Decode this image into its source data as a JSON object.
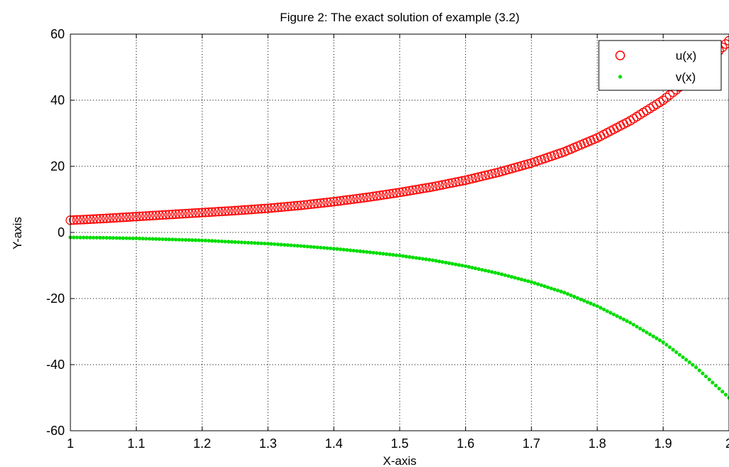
{
  "chart_data": {
    "type": "scatter",
    "title": "Figure 2: The exact solution of example (3.2)",
    "xlabel": "X-axis",
    "ylabel": "Y-axis",
    "xlim": [
      1,
      2
    ],
    "ylim": [
      -60,
      60
    ],
    "xticks": [
      1,
      1.1,
      1.2,
      1.3,
      1.4,
      1.5,
      1.6,
      1.7,
      1.8,
      1.9,
      2
    ],
    "yticks": [
      -60,
      -40,
      -20,
      0,
      20,
      40,
      60
    ],
    "xtick_labels": [
      "1",
      "1.1",
      "1.2",
      "1.3",
      "1.4",
      "1.5",
      "1.6",
      "1.7",
      "1.8",
      "1.9",
      "2"
    ],
    "ytick_labels": [
      "-60",
      "-40",
      "-20",
      "0",
      "20",
      "40",
      "60"
    ],
    "grid": true,
    "legend_position": "top-right",
    "colors": {
      "u": "#ff0000",
      "v": "#00dd00"
    },
    "series": [
      {
        "name": "u(x)",
        "marker": "circle",
        "x": [
          1.0,
          1.05,
          1.1,
          1.15,
          1.2,
          1.25,
          1.3,
          1.35,
          1.4,
          1.45,
          1.5,
          1.55,
          1.6,
          1.65,
          1.7,
          1.75,
          1.8,
          1.85,
          1.9,
          1.95,
          2.0
        ],
        "y": [
          3.7,
          4.2,
          4.8,
          5.4,
          6.0,
          6.6,
          7.3,
          8.2,
          9.3,
          10.6,
          12.1,
          13.8,
          15.8,
          18.2,
          21.0,
          24.4,
          28.6,
          33.8,
          40.0,
          48.0,
          58.0
        ]
      },
      {
        "name": "v(x)",
        "marker": "dot",
        "x": [
          1.0,
          1.05,
          1.1,
          1.15,
          1.2,
          1.25,
          1.3,
          1.35,
          1.4,
          1.45,
          1.5,
          1.55,
          1.6,
          1.65,
          1.7,
          1.75,
          1.8,
          1.85,
          1.9,
          1.95,
          2.0
        ],
        "y": [
          -1.5,
          -1.6,
          -1.8,
          -2.1,
          -2.4,
          -2.9,
          -3.4,
          -4.1,
          -4.9,
          -5.9,
          -7.0,
          -8.4,
          -10.2,
          -12.4,
          -15.0,
          -18.2,
          -22.3,
          -27.3,
          -33.2,
          -40.8,
          -50.0
        ]
      }
    ]
  }
}
